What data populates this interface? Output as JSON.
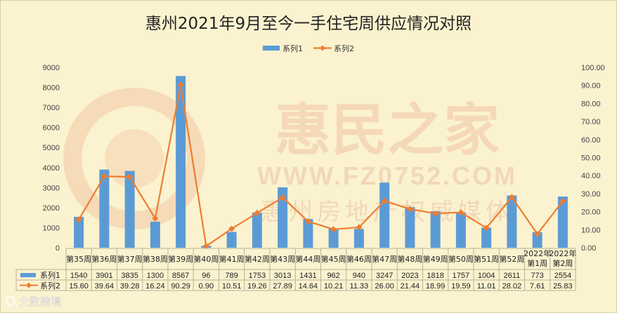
{
  "watermark": {
    "brand": "惠民之家",
    "url": "WWW.FZ0752.COM",
    "tagline": "惠州房地产权威媒体",
    "corner": "大数跨境"
  },
  "chart_data": {
    "type": "bar",
    "title": "惠州2021年9月至今一手住宅周供应情况对照",
    "categories": [
      "第35周",
      "第36周",
      "第37周",
      "第38周",
      "第39周",
      "第40周",
      "第41周",
      "第42周",
      "第43周",
      "第44周",
      "第45周",
      "第46周",
      "第47周",
      "第48周",
      "第49周",
      "第50周",
      "第51周",
      "第52周",
      "2022年第1周",
      "2022年第2周"
    ],
    "category_lines": [
      [
        "第35周"
      ],
      [
        "第36周"
      ],
      [
        "第37周"
      ],
      [
        "第38周"
      ],
      [
        "第39周"
      ],
      [
        "第40周"
      ],
      [
        "第41周"
      ],
      [
        "第42周"
      ],
      [
        "第43周"
      ],
      [
        "第44周"
      ],
      [
        "第45周"
      ],
      [
        "第46周"
      ],
      [
        "第47周"
      ],
      [
        "第48周"
      ],
      [
        "第49周"
      ],
      [
        "第50周"
      ],
      [
        "第51周"
      ],
      [
        "第52周"
      ],
      [
        "2022年",
        "第1周"
      ],
      [
        "2022年",
        "第2周"
      ]
    ],
    "series": [
      {
        "name": "系列1",
        "type": "bar",
        "axis": "left",
        "color": "#5b9bd5",
        "values": [
          1540,
          3901,
          3835,
          1300,
          8567,
          96,
          789,
          1753,
          3013,
          1431,
          962,
          940,
          3247,
          2023,
          1818,
          1757,
          1004,
          2611,
          773,
          2554
        ],
        "labels": [
          "1540",
          "3901",
          "3835",
          "1300",
          "8567",
          "96",
          "789",
          "1753",
          "3013",
          "1431",
          "962",
          "940",
          "3247",
          "2023",
          "1818",
          "1757",
          "1004",
          "2611",
          "773",
          "2554"
        ]
      },
      {
        "name": "系列2",
        "type": "line",
        "axis": "right",
        "color": "#ed7d31",
        "values": [
          15.6,
          39.64,
          39.28,
          16.24,
          90.29,
          0.9,
          10.51,
          19.26,
          27.89,
          14.64,
          10.21,
          11.33,
          26.0,
          21.44,
          18.99,
          19.59,
          11.01,
          28.02,
          7.61,
          25.83
        ],
        "labels": [
          "15.60",
          "39.64",
          "39.28",
          "16.24",
          "90.29",
          "0.90",
          "10.51",
          "19.26",
          "27.89",
          "14.64",
          "10.21",
          "11.33",
          "26.00",
          "21.44",
          "18.99",
          "19.59",
          "11.01",
          "28.02",
          "7.61",
          "25.83"
        ]
      }
    ],
    "y_left": {
      "min": 0,
      "max": 9000,
      "step": 1000,
      "ticks": [
        "0",
        "1000",
        "2000",
        "3000",
        "4000",
        "5000",
        "6000",
        "7000",
        "8000",
        "9000"
      ]
    },
    "y_right": {
      "min": 0,
      "max": 100,
      "step": 10,
      "ticks": [
        "0.00",
        "10.00",
        "20.00",
        "30.00",
        "40.00",
        "50.00",
        "60.00",
        "70.00",
        "80.00",
        "90.00",
        "100.00"
      ]
    },
    "legend_position": "top",
    "grid": false,
    "data_table": true
  }
}
